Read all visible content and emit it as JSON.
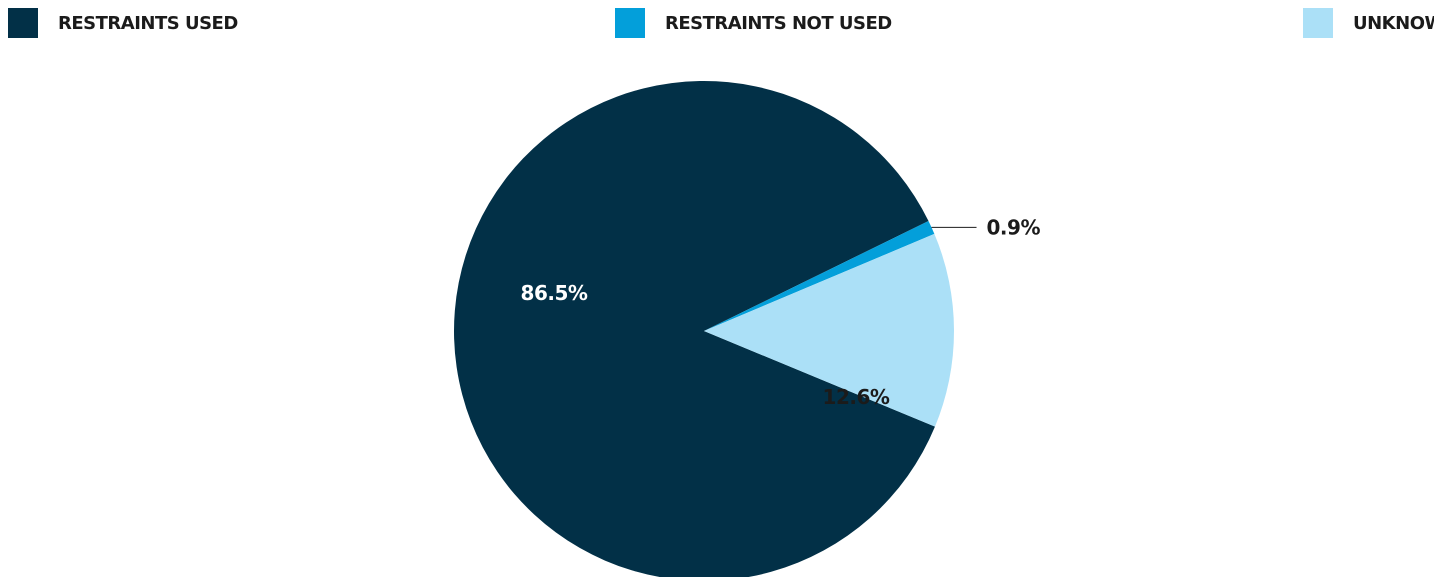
{
  "chart_data": {
    "type": "pie",
    "title": "",
    "legend_position": "top",
    "slices": [
      {
        "name": "RESTRAINTS USED",
        "value": 86.5,
        "label": "86.5%",
        "color": "#023047"
      },
      {
        "name": "RESTRAINTS NOT USED",
        "value": 0.9,
        "label": "0.9%",
        "color": "#039fda"
      },
      {
        "name": "UNKNOWN",
        "value": 12.6,
        "label": "12.6%",
        "color": "#abe0f7"
      }
    ]
  }
}
